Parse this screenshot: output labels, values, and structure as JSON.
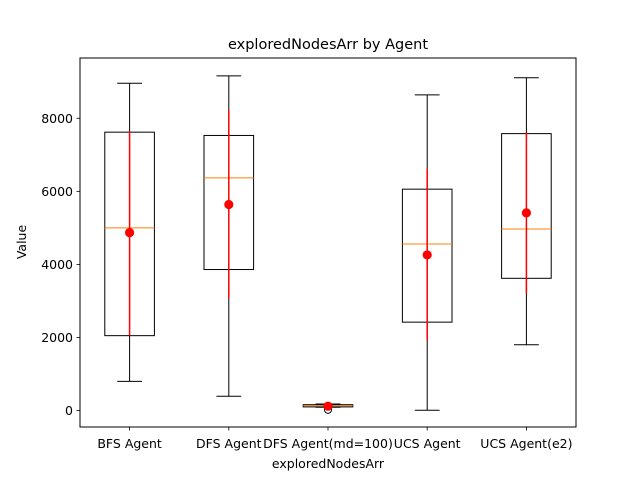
{
  "chart_data": {
    "type": "box",
    "title": "exploredNodesArr by Agent",
    "xlabel": "exploredNodesArr",
    "ylabel": "Value",
    "ylim": [
      -450,
      9650
    ],
    "yticks": [
      0,
      2000,
      4000,
      6000,
      8000
    ],
    "grid": false,
    "categories": [
      "BFS Agent",
      "DFS Agent",
      "DFS Agent(md=100)",
      "UCS Agent",
      "UCS Agent(e2)"
    ],
    "boxes": [
      {
        "whisker_low": 800,
        "q1": 2050,
        "median": 5000,
        "q3": 7620,
        "whisker_high": 8960,
        "outliers": [],
        "mean": 4870,
        "sd_low": 2050,
        "sd_high": 7650
      },
      {
        "whisker_low": 390,
        "q1": 3860,
        "median": 6370,
        "q3": 7530,
        "whisker_high": 9160,
        "outliers": [],
        "mean": 5640,
        "sd_low": 3080,
        "sd_high": 8220
      },
      {
        "whisker_low": 90,
        "q1": 100,
        "median": 130,
        "q3": 160,
        "whisker_high": 180,
        "outliers": [
          20
        ],
        "mean": 120,
        "sd_low": 80,
        "sd_high": 170
      },
      {
        "whisker_low": 10,
        "q1": 2420,
        "median": 4560,
        "q3": 6060,
        "whisker_high": 8640,
        "outliers": [],
        "mean": 4260,
        "sd_low": 1920,
        "sd_high": 6620
      },
      {
        "whisker_low": 1800,
        "q1": 3620,
        "median": 4970,
        "q3": 7580,
        "whisker_high": 9110,
        "outliers": [],
        "mean": 5410,
        "sd_low": 3200,
        "sd_high": 7620
      }
    ],
    "colors": {
      "box": "#000000",
      "median": "#ff7f0e",
      "mean": "#ff0000",
      "errorbar": "#ff0000"
    }
  }
}
